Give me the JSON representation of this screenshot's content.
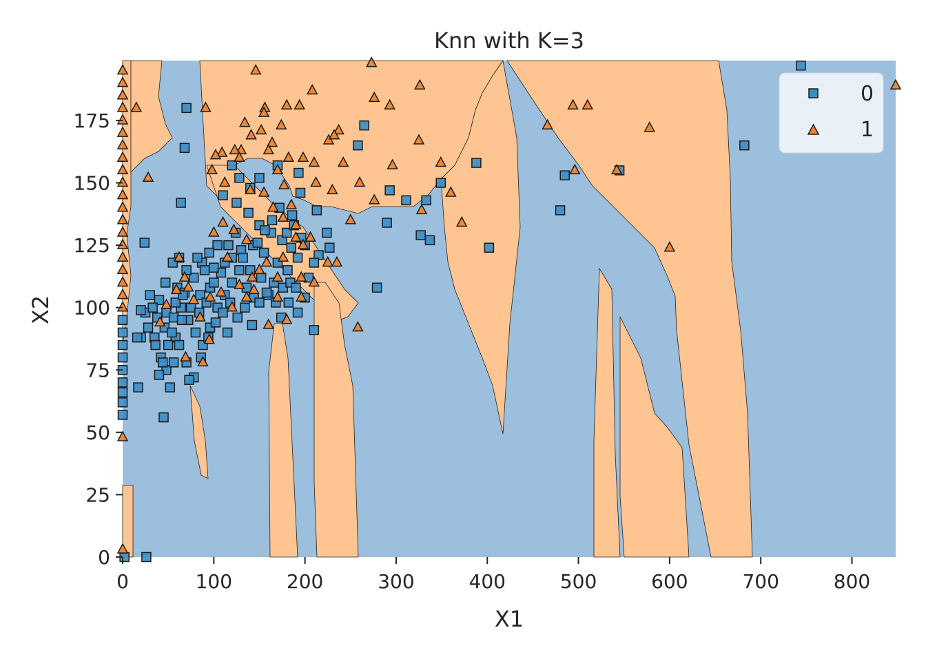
{
  "chart_data": {
    "type": "scatter",
    "title": "Knn with K=3",
    "xlabel": "X1",
    "ylabel": "X2",
    "xlim": [
      0,
      848
    ],
    "ylim": [
      0,
      199
    ],
    "xticks": [
      0,
      100,
      200,
      300,
      400,
      500,
      600,
      700,
      800
    ],
    "yticks": [
      0,
      25,
      50,
      75,
      100,
      125,
      150,
      175
    ],
    "grid": false,
    "legend_position": "top-right",
    "colors": {
      "class_0_region": "#9bbfdc",
      "class_1_region": "#fec592",
      "class_0_marker": "#3c8dc6",
      "class_1_marker": "#f0842c",
      "marker_edge": "#1a1a1a"
    },
    "classes": [
      {
        "label": "0",
        "marker": "square"
      },
      {
        "label": "1",
        "marker": "triangle"
      }
    ],
    "series": [
      {
        "name": "0",
        "points": [
          [
            744,
            197
          ],
          [
            70,
            180
          ],
          [
            68,
            164
          ],
          [
            682,
            165
          ],
          [
            265,
            173
          ],
          [
            258,
            165
          ],
          [
            388,
            158
          ],
          [
            485,
            153
          ],
          [
            545,
            155
          ],
          [
            480,
            139
          ],
          [
            402,
            124
          ],
          [
            279,
            108
          ],
          [
            293,
            147
          ],
          [
            311,
            143
          ],
          [
            333,
            143
          ],
          [
            349,
            150
          ],
          [
            290,
            134
          ],
          [
            327,
            129
          ],
          [
            337,
            127
          ],
          [
            213,
            139
          ],
          [
            210,
            91
          ],
          [
            224,
            130
          ],
          [
            227,
            124
          ],
          [
            64,
            142
          ],
          [
            170,
            157
          ],
          [
            193,
            154
          ],
          [
            120,
            157
          ],
          [
            186,
            137
          ],
          [
            195,
            146
          ],
          [
            110,
            145
          ],
          [
            125,
            142
          ],
          [
            138,
            138
          ],
          [
            150,
            133
          ],
          [
            163,
            130
          ],
          [
            175,
            127
          ],
          [
            185,
            124
          ],
          [
            200,
            125
          ],
          [
            215,
            121
          ],
          [
            143,
            125
          ],
          [
            155,
            122
          ],
          [
            170,
            118
          ],
          [
            181,
            115
          ],
          [
            192,
            120
          ],
          [
            204,
            112
          ],
          [
            130,
            123
          ],
          [
            120,
            120
          ],
          [
            112,
            118
          ],
          [
            104,
            125
          ],
          [
            95,
            122
          ],
          [
            87,
            118
          ],
          [
            78,
            112
          ],
          [
            70,
            115
          ],
          [
            62,
            120
          ],
          [
            55,
            118
          ],
          [
            47,
            110
          ],
          [
            40,
            103
          ],
          [
            48,
            98
          ],
          [
            56,
            96
          ],
          [
            64,
            100
          ],
          [
            72,
            95
          ],
          [
            80,
            90
          ],
          [
            88,
            85
          ],
          [
            96,
            92
          ],
          [
            104,
            100
          ],
          [
            112,
            105
          ],
          [
            120,
            110
          ],
          [
            128,
            115
          ],
          [
            136,
            108
          ],
          [
            144,
            104
          ],
          [
            152,
            112
          ],
          [
            160,
            105
          ],
          [
            168,
            102
          ],
          [
            176,
            108
          ],
          [
            184,
            110
          ],
          [
            192,
            98
          ],
          [
            200,
            104
          ],
          [
            210,
            118
          ],
          [
            96,
            108
          ],
          [
            85,
            105
          ],
          [
            75,
            100
          ],
          [
            65,
            95
          ],
          [
            58,
            88
          ],
          [
            50,
            85
          ],
          [
            42,
            80
          ],
          [
            35,
            88
          ],
          [
            28,
            92
          ],
          [
            20,
            88
          ],
          [
            25,
            98
          ],
          [
            30,
            105
          ],
          [
            38,
            96
          ],
          [
            46,
            92
          ],
          [
            54,
            90
          ],
          [
            62,
            85
          ],
          [
            70,
            78
          ],
          [
            78,
            72
          ],
          [
            86,
            80
          ],
          [
            94,
            88
          ],
          [
            102,
            94
          ],
          [
            110,
            98
          ],
          [
            118,
            102
          ],
          [
            126,
            96
          ],
          [
            134,
            100
          ],
          [
            142,
            93
          ],
          [
            150,
            102
          ],
          [
            158,
            106
          ],
          [
            166,
            110
          ],
          [
            174,
            96
          ],
          [
            182,
            102
          ],
          [
            190,
            108
          ],
          [
            48,
            75
          ],
          [
            40,
            73
          ],
          [
            56,
            78
          ],
          [
            52,
            68
          ],
          [
            45,
            56
          ],
          [
            17,
            68
          ],
          [
            73,
            71
          ],
          [
            26,
            0
          ],
          [
            2,
            0
          ],
          [
            0,
            57
          ],
          [
            0,
            62
          ],
          [
            0,
            66
          ],
          [
            0,
            70
          ],
          [
            0,
            75
          ],
          [
            0,
            80
          ],
          [
            0,
            85
          ],
          [
            0,
            90
          ],
          [
            0,
            95
          ],
          [
            20,
            99
          ],
          [
            16,
            88
          ],
          [
            33,
            100
          ],
          [
            60,
            108
          ],
          [
            68,
            106
          ],
          [
            82,
            120
          ],
          [
            90,
            115
          ],
          [
            100,
            110
          ],
          [
            108,
            114
          ],
          [
            116,
            125
          ],
          [
            124,
            130
          ],
          [
            132,
            120
          ],
          [
            140,
            115
          ],
          [
            148,
            126
          ],
          [
            156,
            131
          ],
          [
            164,
            135
          ],
          [
            172,
            140
          ],
          [
            180,
            130
          ],
          [
            188,
            133
          ],
          [
            196,
            128
          ],
          [
            140,
            148
          ],
          [
            150,
            152
          ],
          [
            128,
            152
          ],
          [
            24,
            126
          ],
          [
            44,
            78
          ],
          [
            36,
            85
          ],
          [
            58,
            102
          ],
          [
            66,
            105
          ],
          [
            84,
            98
          ],
          [
            92,
            102
          ],
          [
            100,
            116
          ],
          [
            115,
            90
          ]
        ]
      },
      {
        "name": "1",
        "points": [
          [
            273,
            198
          ],
          [
            146,
            195
          ],
          [
            326,
            189
          ],
          [
            848,
            189
          ],
          [
            208,
            187
          ],
          [
            276,
            184
          ],
          [
            194,
            181
          ],
          [
            180,
            181
          ],
          [
            15,
            180
          ],
          [
            91,
            180
          ],
          [
            494,
            181
          ],
          [
            510,
            181
          ],
          [
            293,
            181
          ],
          [
            578,
            172
          ],
          [
            466,
            173
          ],
          [
            156,
            180
          ],
          [
            155,
            178
          ],
          [
            174,
            173
          ],
          [
            134,
            174
          ],
          [
            141,
            169
          ],
          [
            152,
            171
          ],
          [
            164,
            166
          ],
          [
            130,
            163
          ],
          [
            123,
            163
          ],
          [
            109,
            162
          ],
          [
            102,
            161
          ],
          [
            98,
            155
          ],
          [
            112,
            150
          ],
          [
            128,
            160
          ],
          [
            160,
            163
          ],
          [
            170,
            155
          ],
          [
            182,
            160
          ],
          [
            198,
            160
          ],
          [
            210,
            158
          ],
          [
            226,
            167
          ],
          [
            237,
            171
          ],
          [
            232,
            169
          ],
          [
            242,
            158
          ],
          [
            260,
            150
          ],
          [
            212,
            150
          ],
          [
            230,
            147
          ],
          [
            250,
            135
          ],
          [
            276,
            143
          ],
          [
            296,
            157
          ],
          [
            325,
            167
          ],
          [
            328,
            139
          ],
          [
            349,
            158
          ],
          [
            360,
            146
          ],
          [
            372,
            134
          ],
          [
            496,
            155
          ],
          [
            542,
            155
          ],
          [
            600,
            124
          ],
          [
            177,
            149
          ],
          [
            185,
            141
          ],
          [
            155,
            146
          ],
          [
            140,
            147
          ],
          [
            165,
            140
          ],
          [
            176,
            136
          ],
          [
            190,
            133
          ],
          [
            206,
            128
          ],
          [
            225,
            118
          ],
          [
            235,
            118
          ],
          [
            196,
            112
          ],
          [
            210,
            110
          ],
          [
            170,
            112
          ],
          [
            158,
            118
          ],
          [
            150,
            115
          ],
          [
            144,
            107
          ],
          [
            136,
            104
          ],
          [
            120,
            100
          ],
          [
            108,
            106
          ],
          [
            96,
            104
          ],
          [
            85,
            96
          ],
          [
            78,
            103
          ],
          [
            68,
            112
          ],
          [
            59,
            107
          ],
          [
            48,
            101
          ],
          [
            41,
            94
          ],
          [
            62,
            120
          ],
          [
            72,
            108
          ],
          [
            88,
            78
          ],
          [
            95,
            87
          ],
          [
            69,
            80
          ],
          [
            136,
            127
          ],
          [
            122,
            131
          ],
          [
            110,
            134
          ],
          [
            100,
            130
          ],
          [
            115,
            120
          ],
          [
            128,
            109
          ],
          [
            142,
            112
          ],
          [
            180,
            95
          ],
          [
            196,
            104
          ],
          [
            160,
            93
          ],
          [
            258,
            92
          ],
          [
            198,
            125
          ],
          [
            190,
            128
          ],
          [
            176,
            120
          ],
          [
            170,
            104
          ],
          [
            0,
            3
          ],
          [
            0,
            190
          ],
          [
            0,
            180
          ],
          [
            0,
            170
          ],
          [
            0,
            160
          ],
          [
            0,
            150
          ],
          [
            0,
            140
          ],
          [
            0,
            130
          ],
          [
            0,
            120
          ],
          [
            0,
            110
          ],
          [
            0,
            100
          ],
          [
            0,
            105
          ],
          [
            0,
            115
          ],
          [
            0,
            125
          ],
          [
            0,
            135
          ],
          [
            0,
            145
          ],
          [
            0,
            155
          ],
          [
            0,
            165
          ],
          [
            0,
            175
          ],
          [
            0,
            185
          ],
          [
            0,
            195
          ],
          [
            28,
            152
          ],
          [
            0,
            48
          ]
        ]
      }
    ]
  }
}
